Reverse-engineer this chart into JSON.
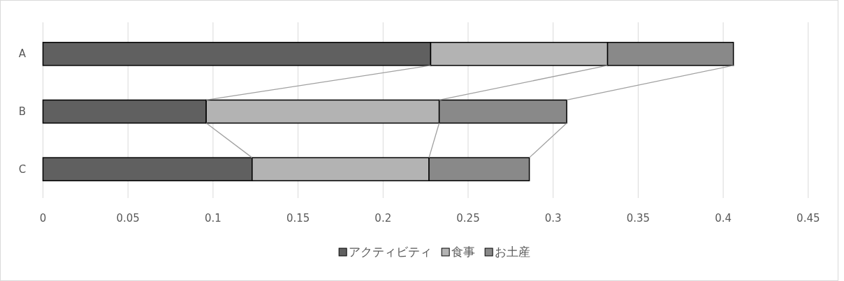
{
  "chart_data": {
    "type": "bar",
    "orientation": "horizontal",
    "stacked": true,
    "categories": [
      "A",
      "B",
      "C"
    ],
    "series": [
      {
        "name": "アクティビティ",
        "color": "#606060",
        "values": [
          0.228,
          0.096,
          0.123
        ]
      },
      {
        "name": "食事",
        "color": "#b3b3b3",
        "values": [
          0.104,
          0.137,
          0.104
        ]
      },
      {
        "name": "お土産",
        "color": "#898989",
        "values": [
          0.074,
          0.075,
          0.059
        ]
      }
    ],
    "xlim": [
      0,
      0.45
    ],
    "xticks": [
      0,
      0.05,
      0.1,
      0.15,
      0.2,
      0.25,
      0.3,
      0.35,
      0.4,
      0.45
    ],
    "grid": "x",
    "legend": "bottom"
  }
}
